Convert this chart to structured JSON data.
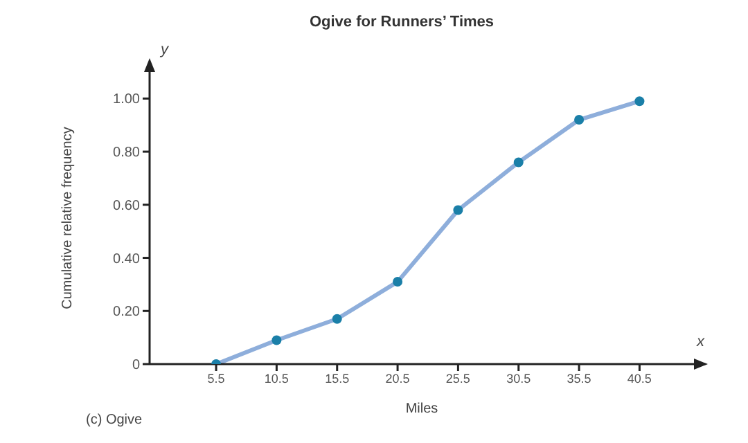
{
  "chart_data": {
    "type": "line",
    "title": "Ogive for Runners’ Times",
    "xlabel": "Miles",
    "ylabel": "Cumulative relative frequency",
    "annotations": [
      "y",
      "x",
      "(c) Ogive"
    ],
    "x": [
      5.5,
      10.5,
      15.5,
      20.5,
      25.5,
      30.5,
      35.5,
      40.5
    ],
    "series": [
      {
        "color": "#8eaedb",
        "values": [
          0,
          0.09,
          0.17,
          0.31,
          0.58,
          0.76,
          0.92,
          0.99
        ]
      }
    ],
    "xlim": [
      0,
      45
    ],
    "xticks": [
      5.5,
      10.5,
      15.5,
      20.5,
      25.5,
      30.5,
      35.5,
      40.5
    ],
    "ylim": [
      0,
      1.1
    ],
    "yticks": [
      0,
      {
        "value": 0.2,
        "label": "0.20"
      },
      {
        "value": 0.4,
        "label": "0.40"
      },
      {
        "value": 0.6,
        "label": "0.60"
      },
      {
        "value": 0.8,
        "label": "0.80"
      },
      {
        "value": 1,
        "label": "1.00"
      }
    ],
    "grid": false,
    "legend": false,
    "marker": "circle",
    "line_style": "solid"
  }
}
